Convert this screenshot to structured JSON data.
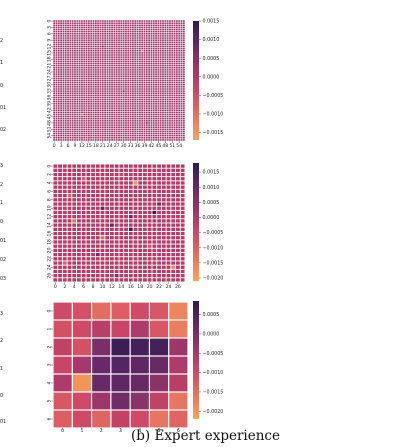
{
  "caption": "(b) Expert experience",
  "left_edge_tick_labels": [
    [
      "2",
      "1",
      "0",
      "01",
      "02"
    ],
    [
      "3",
      "2",
      "1",
      "0",
      "01",
      "02",
      "03"
    ],
    [
      "3",
      "2",
      "1",
      "0",
      "01"
    ]
  ],
  "colors": {
    "colormap": [
      "#f3a65b",
      "#ec8360",
      "#dd5f63",
      "#c84567",
      "#a23869",
      "#7b2f69",
      "#542563",
      "#2f1b4d"
    ],
    "cell_border": "#ffffff"
  },
  "chart_data": [
    {
      "type": "heatmap",
      "rows": 57,
      "cols": 57,
      "xticks": [
        "0",
        "3",
        "6",
        "9",
        "12",
        "15",
        "18",
        "21",
        "24",
        "27",
        "30",
        "33",
        "36",
        "39",
        "42",
        "45",
        "48",
        "51",
        "54"
      ],
      "yticks": [
        "0",
        "3",
        "6",
        "9",
        "12",
        "15",
        "18",
        "21",
        "24",
        "27",
        "30",
        "33",
        "36",
        "39",
        "42",
        "45",
        "48",
        "51",
        "54"
      ],
      "colorbar": {
        "min": -0.0017,
        "max": 0.0015,
        "ticks": [
          "0.0015",
          "0.0010",
          "0.0005",
          "0.0000",
          "−0.0005",
          "−0.0010",
          "−0.0015"
        ],
        "tick_values": [
          0.0015,
          0.001,
          0.0005,
          0.0,
          -0.0005,
          -0.001,
          -0.0015
        ]
      },
      "uniform_value": 0.0002,
      "special_cells": [
        {
          "row": 12,
          "col": 21,
          "value": 0.0012
        },
        {
          "row": 14,
          "col": 38,
          "value": -0.0012
        },
        {
          "row": 33,
          "col": 30,
          "value": 0.0012
        },
        {
          "row": 44,
          "col": 12,
          "value": -0.001
        },
        {
          "row": 48,
          "col": 40,
          "value": 0.0011
        }
      ]
    },
    {
      "type": "heatmap",
      "rows": 28,
      "cols": 28,
      "xticks": [
        "0",
        "2",
        "4",
        "6",
        "8",
        "10",
        "12",
        "14",
        "16",
        "18",
        "20",
        "22",
        "24",
        "26"
      ],
      "yticks": [
        "0",
        "2",
        "4",
        "6",
        "8",
        "10",
        "12",
        "14",
        "16",
        "18",
        "20",
        "22",
        "24",
        "26"
      ],
      "colorbar": {
        "min": -0.0021,
        "max": 0.0018,
        "ticks": [
          "0.0015",
          "0.0010",
          "0.0005",
          "0.0000",
          "−0.0005",
          "−0.0010",
          "−0.0015",
          "−0.0020"
        ],
        "tick_values": [
          0.0015,
          0.001,
          0.0005,
          0.0,
          -0.0005,
          -0.001,
          -0.0015,
          -0.002
        ]
      },
      "uniform_value": -0.0001,
      "special_cells": [
        {
          "row": 2,
          "col": 14,
          "value": -0.0005
        },
        {
          "row": 3,
          "col": 6,
          "value": -0.0009
        },
        {
          "row": 4,
          "col": 17,
          "value": -0.0018
        },
        {
          "row": 7,
          "col": 3,
          "value": -0.0011
        },
        {
          "row": 9,
          "col": 22,
          "value": 0.0009
        },
        {
          "row": 10,
          "col": 10,
          "value": 0.0012
        },
        {
          "row": 11,
          "col": 21,
          "value": 0.0017
        },
        {
          "row": 12,
          "col": 16,
          "value": 0.0009
        },
        {
          "row": 13,
          "col": 4,
          "value": -0.0013
        },
        {
          "row": 14,
          "col": 12,
          "value": 0.0011
        },
        {
          "row": 15,
          "col": 16,
          "value": 0.0016
        },
        {
          "row": 17,
          "col": 10,
          "value": -0.0012
        },
        {
          "row": 19,
          "col": 20,
          "value": -0.0008
        },
        {
          "row": 21,
          "col": 9,
          "value": 0.0008
        },
        {
          "row": 23,
          "col": 2,
          "value": -0.001
        },
        {
          "row": 24,
          "col": 25,
          "value": -0.0016
        },
        {
          "row": 26,
          "col": 13,
          "value": 0.0007
        }
      ]
    },
    {
      "type": "heatmap",
      "rows": 7,
      "cols": 7,
      "xticks": [
        "0",
        "1",
        "2",
        "3",
        "4",
        "5",
        "6"
      ],
      "yticks": [
        "0",
        "1",
        "2",
        "3",
        "4",
        "5",
        "6"
      ],
      "colorbar": {
        "min": -0.0022,
        "max": 0.00085,
        "ticks": [
          "0.0005",
          "0.0000",
          "−0.0005",
          "−0.0010",
          "−0.0015",
          "−0.0020"
        ],
        "tick_values": [
          0.0005,
          0.0,
          -0.0005,
          -0.001,
          -0.0015,
          -0.002
        ]
      },
      "values": [
        [
          -0.001,
          -0.0011,
          -0.0015,
          -0.0013,
          -0.001,
          -0.0012,
          -0.0018
        ],
        [
          -0.0011,
          -0.001,
          -0.0007,
          -0.0009,
          -0.0006,
          -0.0012,
          -0.0017
        ],
        [
          -0.0008,
          -0.0011,
          0.0,
          0.0007,
          0.0006,
          0.0006,
          -0.0004
        ],
        [
          -0.0009,
          -0.0005,
          0.0002,
          0.0004,
          0.0003,
          0.0002,
          -0.0006
        ],
        [
          -0.0006,
          -0.002,
          0.0002,
          0.0003,
          0.0002,
          -0.0002,
          -0.0007
        ],
        [
          -0.0012,
          -0.001,
          -0.0004,
          0.0001,
          -0.0002,
          -0.0008,
          -0.0016
        ],
        [
          -0.0013,
          -0.001,
          -0.0014,
          -0.0008,
          -0.001,
          -0.0016,
          -0.0014
        ]
      ]
    }
  ]
}
